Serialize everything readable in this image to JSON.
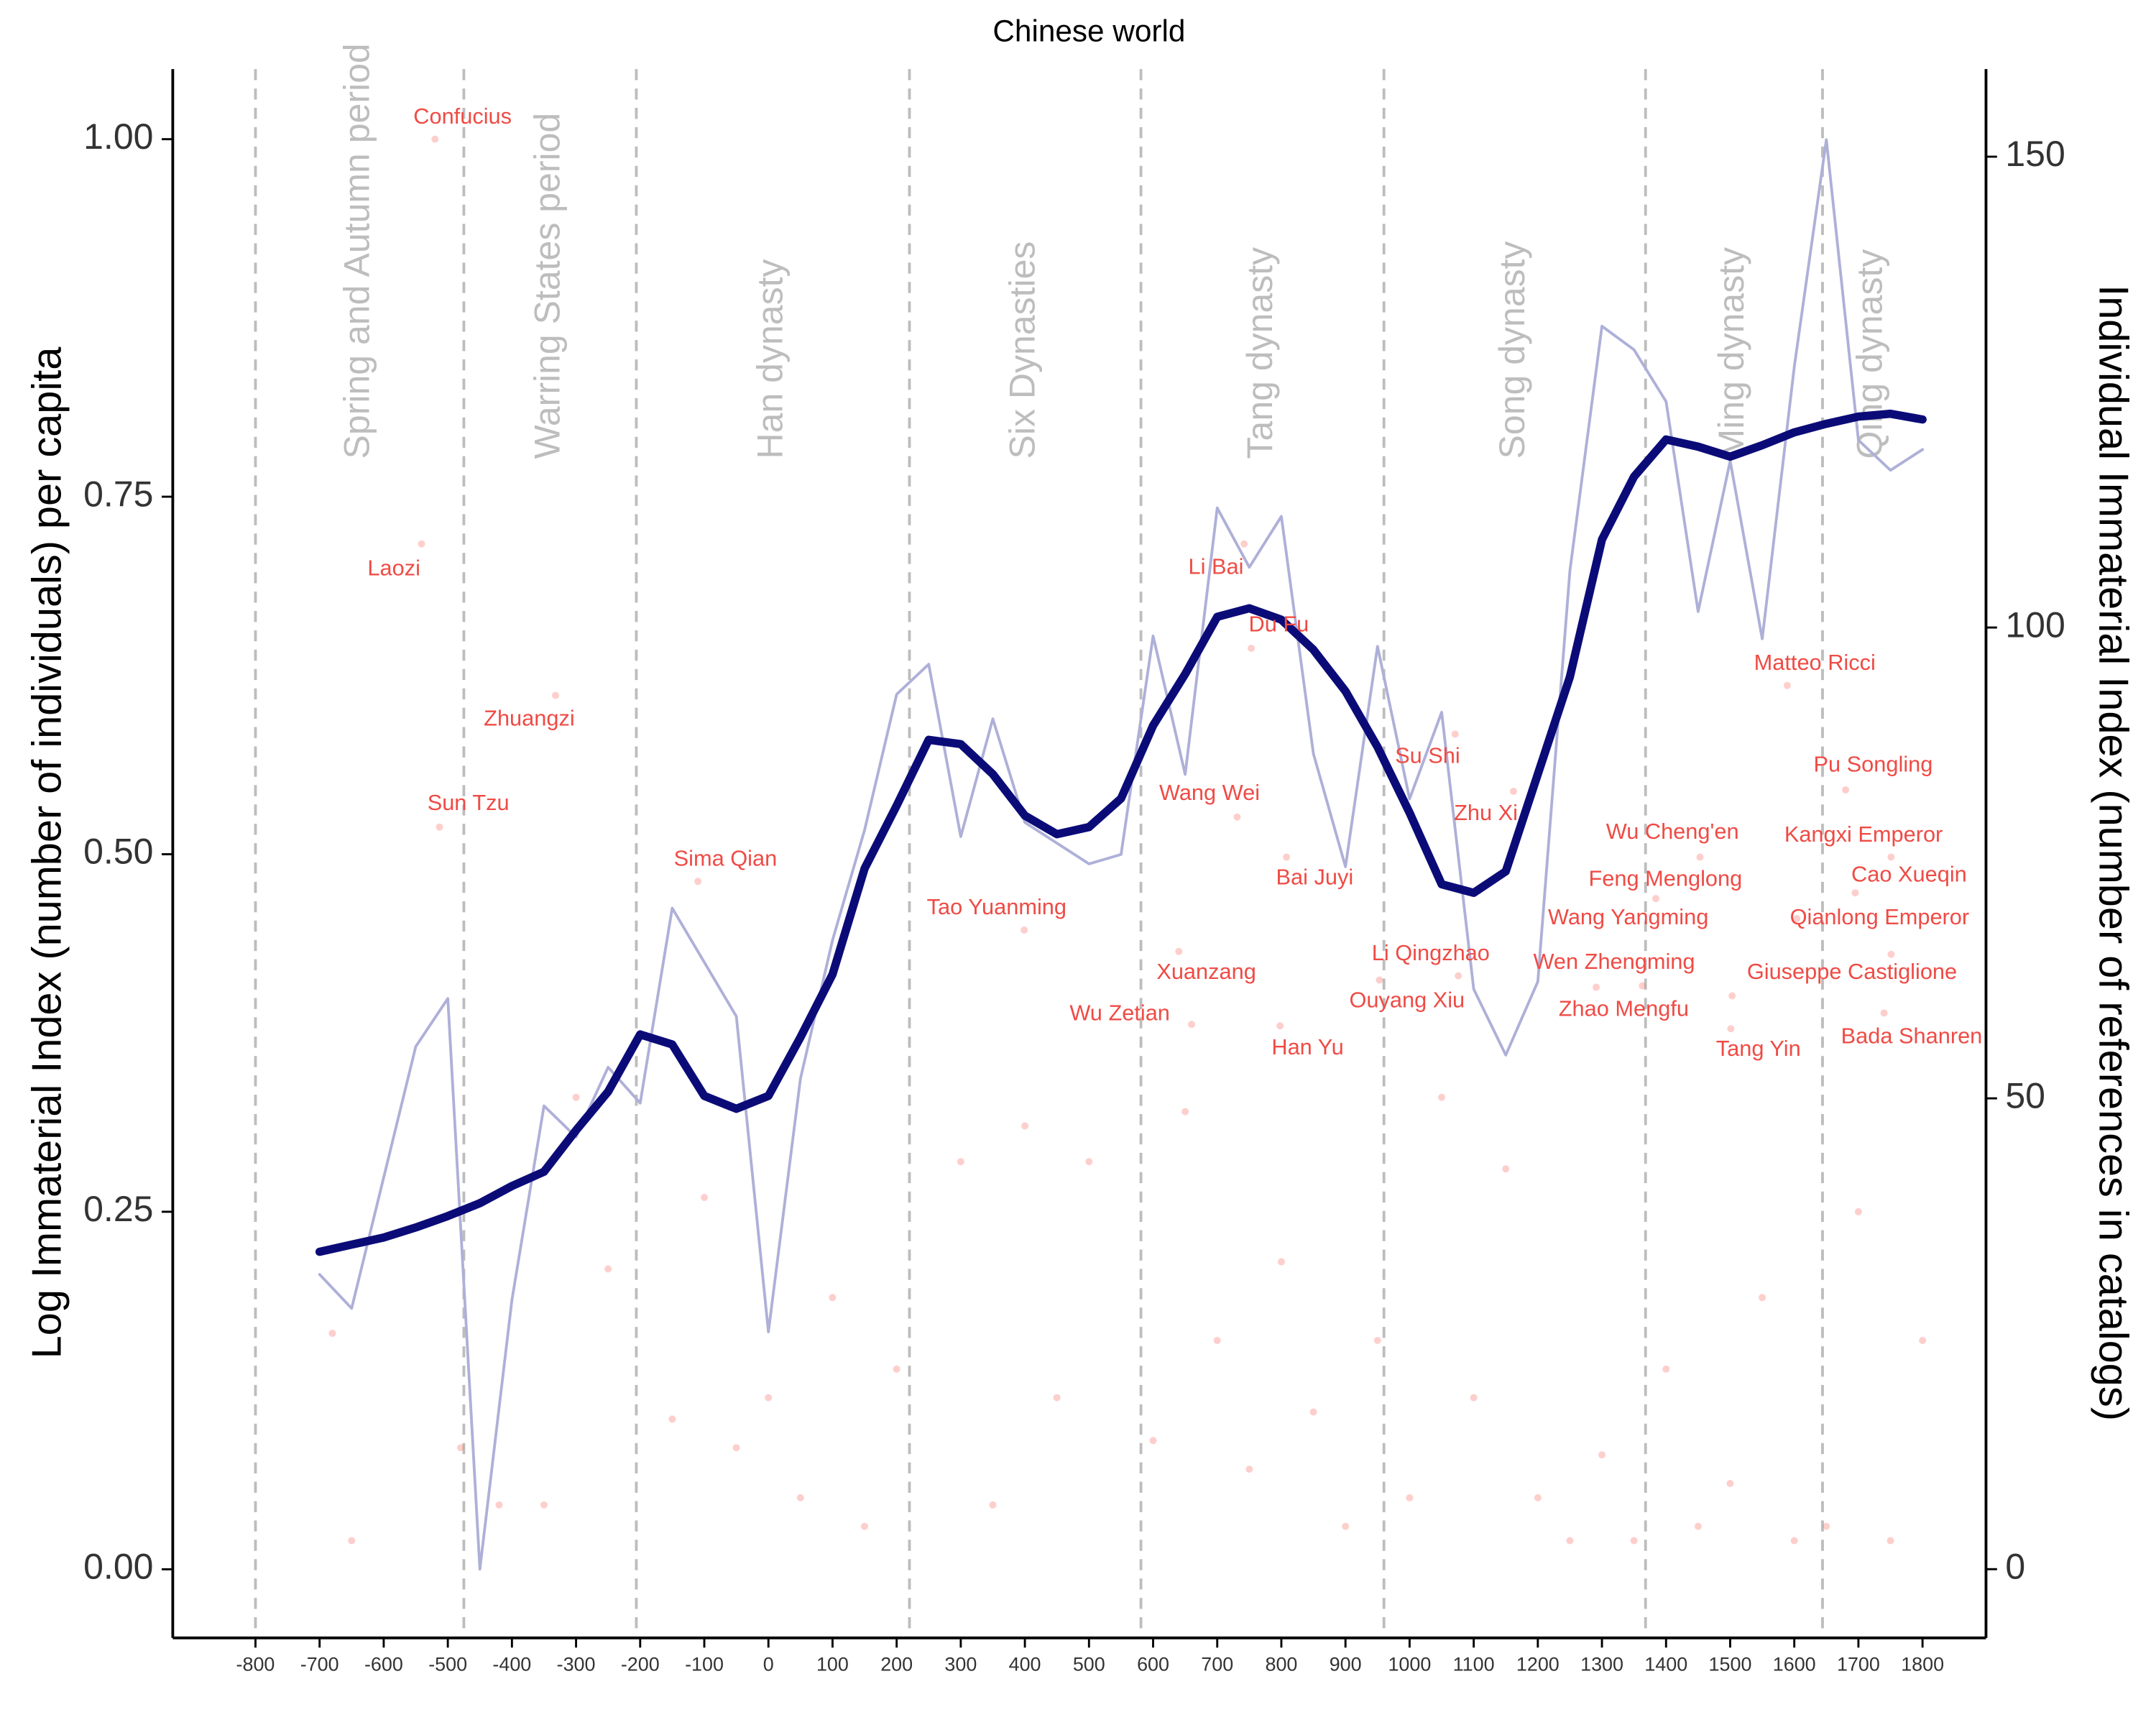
{
  "chart_data": {
    "type": "line",
    "title": "Chinese world",
    "ylabel": "Log Immaterial Index (number of individuals) per capita",
    "y2label": "Individual Immaterial Index (number of references in catalogs)",
    "xlim": [
      -929,
      1899
    ],
    "xticks": [
      -800,
      -700,
      -600,
      -500,
      -400,
      -300,
      -200,
      -100,
      0,
      100,
      200,
      300,
      400,
      500,
      600,
      700,
      800,
      900,
      1000,
      1100,
      1200,
      1300,
      1400,
      1500,
      1600,
      1700,
      1800
    ],
    "ylim": [
      -0.048,
      1.049
    ],
    "yticks": [
      {
        "value": 0,
        "label": "0.00"
      },
      {
        "value": 0.25,
        "label": "0.25"
      },
      {
        "value": 0.5,
        "label": "0.50"
      },
      {
        "value": 0.75,
        "label": "0.75"
      },
      {
        "value": 1,
        "label": "1.00"
      }
    ],
    "y2lim": [
      -7.3,
      159.3
    ],
    "y2ticks": [
      0,
      50,
      100,
      150
    ],
    "periods": [
      {
        "name": "Spring and Autumn period",
        "start": -800
      },
      {
        "name": "Warring States period",
        "start": -475
      },
      {
        "name": "Han dynasty",
        "start": -206
      },
      {
        "name": "Six Dynasties",
        "start": 220
      },
      {
        "name": "Tang dynasty",
        "start": 581
      },
      {
        "name": "Song dynasty",
        "start": 960
      },
      {
        "name": "Ming dynasty",
        "start": 1368
      },
      {
        "name": "Qing dynasty",
        "start": 1644
      }
    ],
    "period_end": 1800,
    "series": [
      {
        "color": "#aeb0d8",
        "axis": "y2",
        "x": [
          -700,
          -650,
          -550,
          -500,
          -450,
          -400,
          -350,
          -300,
          -250,
          -200,
          -150,
          -50,
          0,
          50,
          100,
          150,
          200,
          250,
          300,
          350,
          400,
          500,
          550,
          600,
          650,
          700,
          750,
          800,
          850,
          900,
          950,
          1000,
          1050,
          1100,
          1150,
          1200,
          1250,
          1300,
          1350,
          1400,
          1450,
          1500,
          1550,
          1600,
          1650,
          1700,
          1750,
          1800
        ],
        "values": [
          31.3,
          27.7,
          55.5,
          60.6,
          0,
          28.6,
          49.2,
          45.9,
          53.3,
          49.5,
          70.2,
          58.7,
          25.2,
          52.1,
          66.8,
          78.5,
          92.9,
          96.1,
          77.8,
          90.3,
          79.3,
          74.9,
          75.9,
          99.1,
          84.4,
          112.7,
          106.4,
          111.8,
          86.6,
          74.6,
          98.0,
          81.8,
          91.0,
          61.6,
          54.6,
          62.4,
          106.0,
          132.0,
          129.5,
          124.0,
          101.7,
          117.7,
          98.8,
          127.7,
          151.8,
          119.9,
          116.7,
          118.9
        ]
      },
      {
        "color": "#0b0b78",
        "axis": "y",
        "x": [
          -700,
          -650,
          -600,
          -550,
          -500,
          -450,
          -400,
          -350,
          -300,
          -250,
          -200,
          -150,
          -100,
          -50,
          0,
          50,
          100,
          150,
          200,
          250,
          300,
          350,
          400,
          450,
          500,
          550,
          600,
          650,
          700,
          750,
          800,
          850,
          900,
          950,
          1000,
          1050,
          1100,
          1150,
          1200,
          1250,
          1300,
          1350,
          1400,
          1450,
          1500,
          1550,
          1600,
          1650,
          1700,
          1750,
          1800
        ],
        "values": [
          0.222,
          0.227,
          0.232,
          0.239,
          0.247,
          0.256,
          0.268,
          0.278,
          0.307,
          0.334,
          0.374,
          0.367,
          0.331,
          0.322,
          0.331,
          0.372,
          0.416,
          0.49,
          0.534,
          0.58,
          0.577,
          0.556,
          0.527,
          0.514,
          0.519,
          0.539,
          0.59,
          0.626,
          0.666,
          0.672,
          0.664,
          0.643,
          0.614,
          0.575,
          0.529,
          0.479,
          0.473,
          0.488,
          0.556,
          0.624,
          0.72,
          0.764,
          0.79,
          0.785,
          0.778,
          0.786,
          0.795,
          0.801,
          0.806,
          0.808,
          0.804
        ]
      }
    ],
    "points": {
      "color": "#f8766d",
      "x": [
        -520,
        -541,
        -332,
        -513,
        -110,
        399,
        660,
        640,
        742,
        753,
        731,
        808,
        798,
        1071,
        1162,
        1076,
        953,
        1363,
        1384,
        1291,
        1604,
        1453,
        1501,
        1503,
        1589,
        1680,
        1751,
        1695,
        1751,
        1740,
        -680,
        -650,
        -480,
        -420,
        -350,
        -300,
        -250,
        -150,
        -100,
        -50,
        0,
        50,
        100,
        150,
        200,
        300,
        350,
        400,
        450,
        500,
        600,
        650,
        700,
        750,
        800,
        850,
        900,
        950,
        1000,
        1050,
        1100,
        1150,
        1200,
        1250,
        1300,
        1350,
        1400,
        1450,
        1500,
        1550,
        1600,
        1650,
        1700,
        1750,
        1800
      ],
      "values": [
        1.0,
        0.717,
        0.611,
        0.519,
        0.481,
        0.447,
        0.381,
        0.432,
        0.717,
        0.644,
        0.526,
        0.498,
        0.38,
        0.584,
        0.544,
        0.415,
        0.412,
        0.408,
        0.469,
        0.407,
        0.455,
        0.498,
        0.378,
        0.401,
        0.618,
        0.545,
        0.498,
        0.473,
        0.43,
        0.389,
        0.165,
        0.02,
        0.085,
        0.045,
        0.045,
        0.33,
        0.21,
        0.105,
        0.26,
        0.085,
        0.12,
        0.05,
        0.19,
        0.03,
        0.14,
        0.285,
        0.045,
        0.31,
        0.12,
        0.285,
        0.09,
        0.32,
        0.16,
        0.07,
        0.215,
        0.11,
        0.03,
        0.16,
        0.05,
        0.33,
        0.12,
        0.28,
        0.05,
        0.02,
        0.08,
        0.02,
        0.14,
        0.03,
        0.06,
        0.19,
        0.02,
        0.03,
        0.25,
        0.02,
        0.16
      ]
    },
    "annotation_color": "#ef4b45",
    "annotations": [
      {
        "text": "Confucius",
        "x": -477,
        "y": 1.015
      },
      {
        "text": "Laozi",
        "x": -584,
        "y": 0.699
      },
      {
        "text": "Zhuangzi",
        "x": -373,
        "y": 0.594
      },
      {
        "text": "Sun Tzu",
        "x": -468,
        "y": 0.535
      },
      {
        "text": "Sima Qian",
        "x": -67,
        "y": 0.496
      },
      {
        "text": "Tao Yuanming",
        "x": 356,
        "y": 0.462
      },
      {
        "text": "Wu Zetian",
        "x": 548,
        "y": 0.388
      },
      {
        "text": "Xuanzang",
        "x": 683,
        "y": 0.417
      },
      {
        "text": "Li Bai",
        "x": 698,
        "y": 0.7
      },
      {
        "text": "Du Fu",
        "x": 796,
        "y": 0.66
      },
      {
        "text": "Wang Wei",
        "x": 688,
        "y": 0.542
      },
      {
        "text": "Bai Juyi",
        "x": 852,
        "y": 0.483
      },
      {
        "text": "Han Yu",
        "x": 841,
        "y": 0.364
      },
      {
        "text": "Su Shi",
        "x": 1028,
        "y": 0.568
      },
      {
        "text": "Zhu Xi",
        "x": 1119,
        "y": 0.528
      },
      {
        "text": "Li Qingzhao",
        "x": 1033,
        "y": 0.43
      },
      {
        "text": "Ouyang Xiu",
        "x": 996,
        "y": 0.397
      },
      {
        "text": "Wen Zhengming",
        "x": 1319,
        "y": 0.424
      },
      {
        "text": "Wang Yangming",
        "x": 1341,
        "y": 0.455
      },
      {
        "text": "Zhao Mengfu",
        "x": 1334,
        "y": 0.391
      },
      {
        "text": "Feng Menglong",
        "x": 1399,
        "y": 0.482
      },
      {
        "text": "Wu Cheng'en",
        "x": 1410,
        "y": 0.515
      },
      {
        "text": "Tang Yin",
        "x": 1544,
        "y": 0.363
      },
      {
        "text": "Giuseppe Castiglione",
        "x": 1690,
        "y": 0.417
      },
      {
        "text": "Matteo Ricci",
        "x": 1632,
        "y": 0.633
      },
      {
        "text": "Pu Songling",
        "x": 1723,
        "y": 0.562
      },
      {
        "text": "Kangxi Emperor",
        "x": 1708,
        "y": 0.513
      },
      {
        "text": "Cao Xueqin",
        "x": 1779,
        "y": 0.485
      },
      {
        "text": "Qianlong Emperor",
        "x": 1733,
        "y": 0.455
      },
      {
        "text": "Bada Shanren",
        "x": 1783,
        "y": 0.372
      }
    ]
  }
}
